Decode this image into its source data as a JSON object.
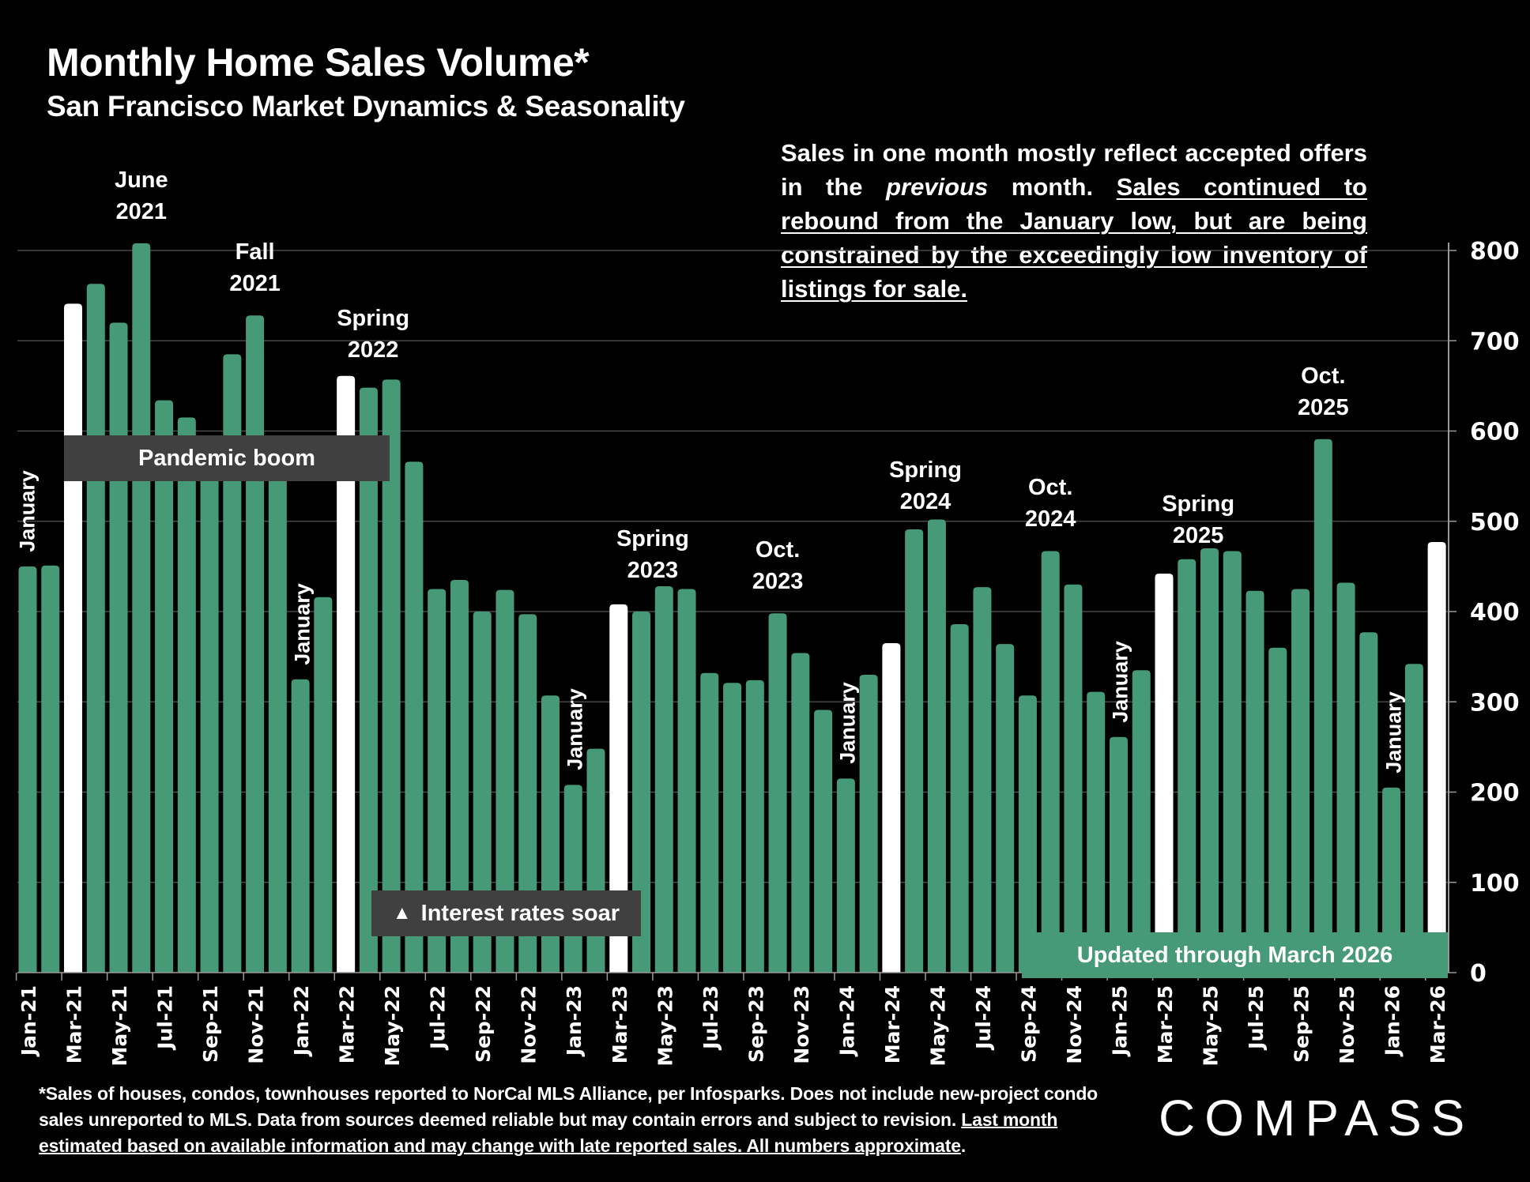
{
  "header": {
    "title": "Monthly Home Sales Volume*",
    "subtitle": "San Francisco Market Dynamics & Seasonality"
  },
  "note": {
    "part1": "Sales in one month mostly reflect accepted offers in the ",
    "italic": "previous",
    "part2": " month. ",
    "underlined": "Sales continued to rebound from the January low, but are being constrained by the exceedingly low inventory of listings for sale."
  },
  "boxes": {
    "pandemic": "Pandemic boom",
    "rates": "Interest rates soar",
    "rates_icon": "triangle-up-icon",
    "updated": "Updated through March 2026"
  },
  "footer": {
    "text": "*Sales of houses, condos, townhouses reported to NorCal MLS Alliance, per Infosparks. Does not include new-project condo sales unreported to MLS. Data from sources deemed reliable but may contain errors and subject to revision. ",
    "underlined": "Last month estimated based on available information and may change with late reported sales. All numbers approximate",
    "end": "."
  },
  "logo": "COMPASS",
  "colors": {
    "background": "#000000",
    "bar": "#469a77",
    "highlight_bar": "#ffffff",
    "gridline": "#555555",
    "annotation_box": "#404040"
  },
  "chart_data": {
    "type": "bar",
    "title": "Monthly Home Sales Volume*",
    "subtitle": "San Francisco Market Dynamics & Seasonality",
    "xlabel": "",
    "ylabel": "",
    "ylim": [
      0,
      800
    ],
    "yticks": [
      0,
      100,
      200,
      300,
      400,
      500,
      600,
      700,
      800
    ],
    "y_axis_side": "right",
    "grid": true,
    "categories": [
      "Jan-21",
      "Feb-21",
      "Mar-21",
      "Apr-21",
      "May-21",
      "Jun-21",
      "Jul-21",
      "Aug-21",
      "Sep-21",
      "Oct-21",
      "Nov-21",
      "Dec-21",
      "Jan-22",
      "Feb-22",
      "Mar-22",
      "Apr-22",
      "May-22",
      "Jun-22",
      "Jul-22",
      "Aug-22",
      "Sep-22",
      "Oct-22",
      "Nov-22",
      "Dec-22",
      "Jan-23",
      "Feb-23",
      "Mar-23",
      "Apr-23",
      "May-23",
      "Jun-23",
      "Jul-23",
      "Aug-23",
      "Sep-23",
      "Oct-23",
      "Nov-23",
      "Dec-23",
      "Jan-24",
      "Feb-24",
      "Mar-24",
      "Apr-24",
      "May-24",
      "Jun-24",
      "Jul-24",
      "Aug-24",
      "Sep-24",
      "Oct-24",
      "Nov-24",
      "Dec-24",
      "Jan-25",
      "Feb-25",
      "Mar-25",
      "Apr-25",
      "May-25",
      "Jun-25",
      "Jul-25",
      "Aug-25",
      "Sep-25",
      "Oct-25",
      "Nov-25",
      "Dec-25",
      "Jan-26",
      "Feb-26",
      "Mar-26"
    ],
    "tick_labels_shown": [
      "Jan-21",
      "Mar-21",
      "May-21",
      "Jul-21",
      "Sep-21",
      "Nov-21",
      "Jan-22",
      "Mar-22",
      "May-22",
      "Jul-22",
      "Sep-22",
      "Nov-22",
      "Jan-23",
      "Mar-23",
      "May-23",
      "Jul-23",
      "Sep-23",
      "Nov-23",
      "Jan-24",
      "Mar-24",
      "May-24",
      "Jul-24",
      "Sep-24",
      "Nov-24",
      "Jan-25",
      "Mar-25",
      "May-25",
      "Jul-25",
      "Sep-25",
      "Nov-25",
      "Jan-26",
      "Mar-26"
    ],
    "values": [
      450,
      451,
      741,
      763,
      720,
      808,
      634,
      615,
      590,
      685,
      728,
      580,
      325,
      416,
      661,
      648,
      657,
      566,
      425,
      435,
      400,
      424,
      397,
      307,
      208,
      248,
      408,
      400,
      428,
      425,
      332,
      321,
      324,
      398,
      354,
      291,
      215,
      330,
      365,
      491,
      502,
      386,
      427,
      364,
      307,
      467,
      430,
      311,
      261,
      335,
      442,
      458,
      470,
      467,
      423,
      360,
      425,
      591,
      432,
      377,
      205,
      342,
      477
    ],
    "highlighted_months": [
      "Mar-21",
      "Mar-22",
      "Mar-23",
      "Mar-24",
      "Mar-25",
      "Mar-26"
    ],
    "annotations": [
      {
        "lines": [
          "June",
          "2021"
        ],
        "at": "Jun-21"
      },
      {
        "lines": [
          "Fall",
          "2021"
        ],
        "at": "Nov-21"
      },
      {
        "lines": [
          "Spring",
          "2022"
        ],
        "at": "Mar-22"
      },
      {
        "lines": [
          "Spring",
          "2023"
        ],
        "at": "Apr-23"
      },
      {
        "lines": [
          "Oct.",
          "2023"
        ],
        "at": "Oct-23"
      },
      {
        "lines": [
          "Spring",
          "2024"
        ],
        "at": "Apr-24"
      },
      {
        "lines": [
          "Oct.",
          "2024"
        ],
        "at": "Oct-24"
      },
      {
        "lines": [
          "Spring",
          "2025"
        ],
        "at": "Apr-25"
      },
      {
        "lines": [
          "Oct.",
          "2025"
        ],
        "at": "Oct-25"
      }
    ],
    "january_labels": [
      "January",
      "January",
      "January",
      "January",
      "January",
      "January"
    ]
  }
}
